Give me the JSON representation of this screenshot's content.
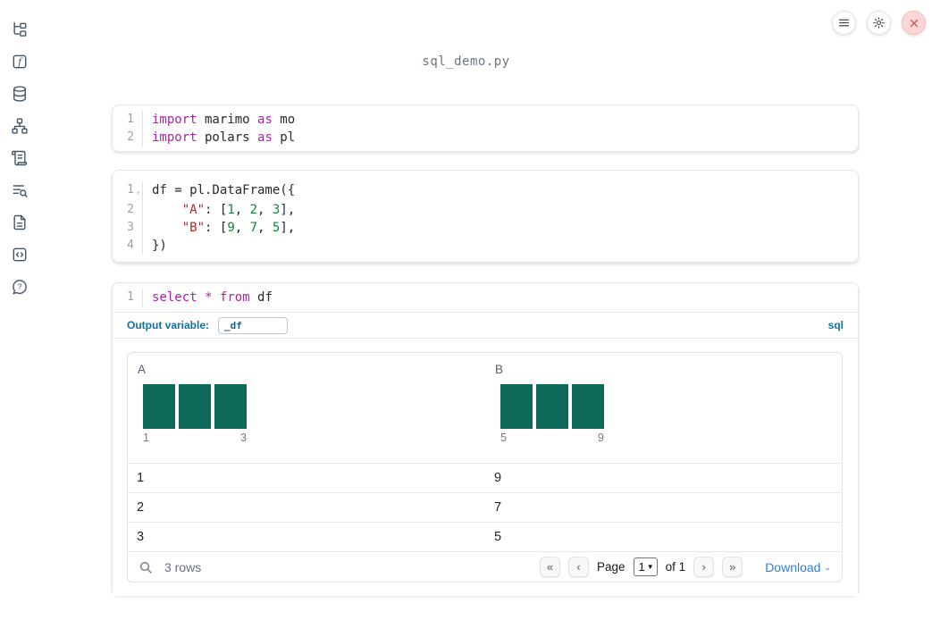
{
  "app": {
    "filename": "sql_demo.py"
  },
  "theme": {
    "histogram_bar_color": "#0e695b",
    "keyword_color": "#a626a4",
    "string_color": "#b02a26",
    "number_color": "#15803d",
    "accent_blue": "#156f9e",
    "link_blue": "#2f7bea",
    "close_button_red": "#cf5454"
  },
  "sidebar": {
    "items": [
      {
        "name": "file-explorer"
      },
      {
        "name": "variables"
      },
      {
        "name": "datasources"
      },
      {
        "name": "dependency-graph"
      },
      {
        "name": "logs"
      },
      {
        "name": "outline-search"
      },
      {
        "name": "documentation"
      },
      {
        "name": "snippets"
      },
      {
        "name": "help"
      }
    ]
  },
  "topbar": {
    "buttons": [
      {
        "name": "menu"
      },
      {
        "name": "settings"
      },
      {
        "name": "shutdown"
      }
    ]
  },
  "cells": [
    {
      "lines": [
        {
          "tokens": [
            [
              "kw",
              "import"
            ],
            [
              "pl",
              " marimo "
            ],
            [
              "kw",
              "as"
            ],
            [
              "pl",
              " mo"
            ]
          ]
        },
        {
          "tokens": [
            [
              "kw",
              "import"
            ],
            [
              "pl",
              " polars "
            ],
            [
              "kw",
              "as"
            ],
            [
              "pl",
              " pl"
            ]
          ]
        }
      ]
    },
    {
      "lines": [
        {
          "fold": true,
          "tokens": [
            [
              "pl",
              "df = pl.DataFrame({"
            ]
          ]
        },
        {
          "tokens": [
            [
              "pl",
              "    "
            ],
            [
              "str",
              "\"A\""
            ],
            [
              "pl",
              ": ["
            ],
            [
              "num",
              "1"
            ],
            [
              "pl",
              ", "
            ],
            [
              "num",
              "2"
            ],
            [
              "pl",
              ", "
            ],
            [
              "num",
              "3"
            ],
            [
              "pl",
              "],"
            ]
          ]
        },
        {
          "tokens": [
            [
              "pl",
              "    "
            ],
            [
              "str",
              "\"B\""
            ],
            [
              "pl",
              ": ["
            ],
            [
              "num",
              "9"
            ],
            [
              "pl",
              ", "
            ],
            [
              "num",
              "7"
            ],
            [
              "pl",
              ", "
            ],
            [
              "num",
              "5"
            ],
            [
              "pl",
              "],"
            ]
          ]
        },
        {
          "tokens": [
            [
              "pl",
              "})"
            ]
          ]
        }
      ]
    },
    {
      "lines": [
        {
          "tokens": [
            [
              "kw",
              "select"
            ],
            [
              "pl",
              " "
            ],
            [
              "kw",
              "*"
            ],
            [
              "pl",
              " "
            ],
            [
              "kw",
              "from"
            ],
            [
              "pl",
              " df"
            ]
          ]
        }
      ]
    }
  ],
  "sql_cell": {
    "output_variable_label": "Output variable:",
    "output_variable_value": "_df",
    "language_label": "sql"
  },
  "table": {
    "columns": [
      {
        "label": "A",
        "histogram": {
          "bars": [
            1,
            1,
            1
          ],
          "ticks": [
            "1",
            "3"
          ]
        }
      },
      {
        "label": "B",
        "histogram": {
          "bars": [
            1,
            1,
            1
          ],
          "ticks": [
            "5",
            "9"
          ]
        }
      }
    ],
    "rows": [
      [
        "1",
        "9"
      ],
      [
        "2",
        "7"
      ],
      [
        "3",
        "5"
      ]
    ],
    "row_count": "3 rows",
    "pagination": {
      "first": "«",
      "prev": "‹",
      "page_label": "Page",
      "page_value": "1",
      "of_label": "of 1",
      "next": "›",
      "last": "»"
    },
    "download_label": "Download"
  }
}
